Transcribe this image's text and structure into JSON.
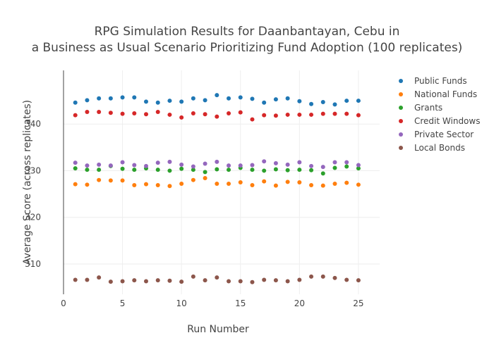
{
  "chart_data": {
    "type": "scatter",
    "title_line1": "RPG Simulation Results for Daanbantayan, Cebu in",
    "title_line2": "a Business as Usual Scenario Prioritizing Fund Adoption (100 replicates)",
    "xlabel": "Run Number",
    "ylabel": "Average Score (across replicates)",
    "xlim": [
      0,
      26.8
    ],
    "ylim": [
      303.5,
      351.5
    ],
    "xticks": [
      0,
      5,
      10,
      15,
      20,
      25
    ],
    "yticks": [
      310,
      320,
      330,
      340
    ],
    "grid": true,
    "legend_position": "top-right",
    "x": [
      1,
      2,
      3,
      4,
      5,
      6,
      7,
      8,
      9,
      10,
      11,
      12,
      13,
      14,
      15,
      16,
      17,
      18,
      19,
      20,
      21,
      22,
      23,
      24,
      25
    ],
    "series": [
      {
        "name": "Public Funds",
        "color": "#1f77b4",
        "values": [
          344.6,
          345.1,
          345.5,
          345.5,
          345.7,
          345.7,
          344.8,
          344.6,
          345.0,
          344.8,
          345.5,
          345.1,
          346.2,
          345.5,
          345.7,
          345.4,
          344.6,
          345.3,
          345.5,
          344.9,
          344.3,
          344.7,
          344.2,
          345.0,
          345.0
        ]
      },
      {
        "name": "National Funds",
        "color": "#ff7f0e",
        "values": [
          327.1,
          327.0,
          328.0,
          327.9,
          327.9,
          326.9,
          327.1,
          326.9,
          326.7,
          327.2,
          328.0,
          328.4,
          327.2,
          327.2,
          327.5,
          326.9,
          327.7,
          326.8,
          327.6,
          327.5,
          326.9,
          326.8,
          327.2,
          327.4,
          327.0
        ]
      },
      {
        "name": "Grants",
        "color": "#2ca02c",
        "values": [
          330.5,
          330.2,
          330.2,
          331.0,
          330.4,
          330.2,
          330.5,
          330.2,
          330.0,
          330.4,
          330.2,
          329.7,
          330.3,
          330.2,
          330.6,
          330.2,
          330.0,
          330.3,
          330.1,
          330.2,
          330.1,
          329.4,
          330.6,
          330.9,
          330.5
        ]
      },
      {
        "name": "Credit Windows",
        "color": "#d62728",
        "values": [
          341.9,
          342.6,
          342.6,
          342.4,
          342.2,
          342.3,
          342.1,
          342.6,
          342.0,
          341.4,
          342.3,
          342.1,
          341.6,
          342.3,
          342.5,
          341.0,
          341.9,
          341.8,
          342.0,
          342.0,
          342.0,
          342.2,
          342.2,
          342.2,
          341.9
        ]
      },
      {
        "name": "Private Sector",
        "color": "#9467bd",
        "values": [
          331.7,
          331.1,
          331.3,
          331.1,
          331.8,
          331.2,
          331.0,
          331.7,
          331.9,
          331.3,
          330.9,
          331.5,
          331.9,
          331.1,
          331.1,
          331.2,
          332.0,
          331.6,
          331.3,
          331.8,
          331.0,
          330.8,
          331.8,
          331.8,
          331.2
        ]
      },
      {
        "name": "Local Bonds",
        "color": "#8c564b",
        "values": [
          306.6,
          306.6,
          307.1,
          306.2,
          306.3,
          306.5,
          306.3,
          306.5,
          306.4,
          306.2,
          307.3,
          306.5,
          307.1,
          306.3,
          306.3,
          306.1,
          306.6,
          306.5,
          306.3,
          306.6,
          307.3,
          307.3,
          307.0,
          306.6,
          306.5
        ]
      }
    ]
  }
}
